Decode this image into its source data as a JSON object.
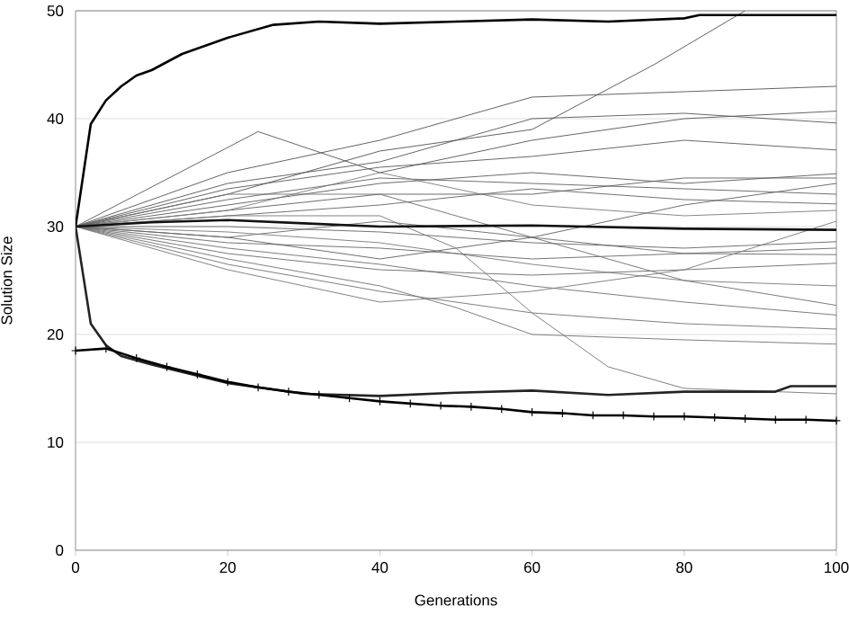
{
  "chart_data": {
    "type": "line",
    "xlabel": "Generations",
    "ylabel": "Solution Size",
    "xlim": [
      0,
      100
    ],
    "ylim": [
      0,
      50
    ],
    "xticks": [
      0,
      20,
      40,
      60,
      80,
      100
    ],
    "yticks": [
      0,
      10,
      20,
      30,
      40,
      50
    ],
    "grid": "y",
    "marker": "none",
    "line_style": "solid",
    "series": [
      {
        "color": "#505050",
        "x": [
          0,
          20,
          40,
          60,
          76,
          88
        ],
        "values": [
          30,
          33,
          37,
          39,
          45,
          50
        ]
      },
      {
        "color": "#525252",
        "x": [
          0,
          20,
          40,
          60,
          80,
          100
        ],
        "values": [
          30,
          35,
          38,
          42,
          42.5,
          43
        ]
      },
      {
        "color": "#545454",
        "x": [
          0,
          24,
          40,
          60,
          80,
          100
        ],
        "values": [
          30,
          38.8,
          35,
          38,
          40,
          40.7
        ]
      },
      {
        "color": "#565656",
        "x": [
          0,
          20,
          40,
          60,
          80,
          100
        ],
        "values": [
          30,
          34,
          36,
          40,
          40.5,
          39.6
        ]
      },
      {
        "color": "#585858",
        "x": [
          0,
          20,
          40,
          60,
          80,
          100
        ],
        "values": [
          30,
          33.5,
          35.5,
          36.5,
          38,
          37.1
        ]
      },
      {
        "color": "#5a5a5a",
        "x": [
          0,
          20,
          40,
          60,
          80,
          100
        ],
        "values": [
          30,
          32,
          34,
          35,
          34,
          34.9
        ]
      },
      {
        "color": "#5c5c5c",
        "x": [
          0,
          20,
          40,
          60,
          80,
          100
        ],
        "values": [
          30,
          31.5,
          33,
          33,
          34.5,
          34.5
        ]
      },
      {
        "color": "#5e5e5e",
        "x": [
          0,
          20,
          40,
          60,
          80,
          100
        ],
        "values": [
          30,
          29,
          27,
          29,
          32,
          34
        ]
      },
      {
        "color": "#606060",
        "x": [
          0,
          20,
          40,
          60,
          80,
          100
        ],
        "values": [
          30,
          32.5,
          34.5,
          34,
          33.5,
          33
        ]
      },
      {
        "color": "#626262",
        "x": [
          0,
          20,
          40,
          60,
          80,
          100
        ],
        "values": [
          30,
          31,
          32,
          33.5,
          32.5,
          32.1
        ]
      },
      {
        "color": "#646464",
        "x": [
          0,
          20,
          40,
          60,
          80,
          100
        ],
        "values": [
          30,
          30,
          29.5,
          28.5,
          28,
          28.6
        ]
      },
      {
        "color": "#666666",
        "x": [
          0,
          20,
          40,
          60,
          80,
          100
        ],
        "values": [
          30,
          28.5,
          28,
          27,
          27.5,
          28
        ]
      },
      {
        "color": "#686868",
        "x": [
          0,
          20,
          40,
          60,
          80,
          100
        ],
        "values": [
          30,
          29,
          30.5,
          29,
          27.5,
          27.4
        ]
      },
      {
        "color": "#6a6a6a",
        "x": [
          0,
          20,
          40,
          60,
          80,
          100
        ],
        "values": [
          30,
          27.5,
          26,
          25.5,
          26,
          26.6
        ]
      },
      {
        "color": "#6c6c6c",
        "x": [
          0,
          20,
          40,
          60,
          80,
          100
        ],
        "values": [
          30,
          33,
          33,
          29,
          25,
          22.7
        ]
      },
      {
        "color": "#6e6e6e",
        "x": [
          0,
          20,
          40,
          60,
          80,
          100
        ],
        "values": [
          30,
          28,
          26.5,
          24.5,
          23,
          21.8
        ]
      },
      {
        "color": "#707070",
        "x": [
          0,
          20,
          40,
          60,
          80,
          100
        ],
        "values": [
          30,
          26.5,
          24,
          22,
          21,
          20.5
        ]
      },
      {
        "color": "#727272",
        "x": [
          0,
          20,
          40,
          50,
          60,
          80,
          100
        ],
        "values": [
          30,
          27,
          24.5,
          22.5,
          20,
          19.5,
          19.1
        ]
      },
      {
        "color": "#747474",
        "x": [
          0,
          20,
          40,
          50,
          60,
          70,
          80,
          100
        ],
        "values": [
          30,
          31,
          31,
          28,
          22,
          17,
          15,
          14.5
        ]
      },
      {
        "color": "#767676",
        "x": [
          0,
          20,
          40,
          60,
          80,
          100
        ],
        "values": [
          30,
          26,
          23,
          24,
          26,
          30.5
        ]
      },
      {
        "color": "#787878",
        "x": [
          0,
          20,
          40,
          60,
          80,
          100
        ],
        "values": [
          30,
          29.5,
          28.5,
          26.5,
          25,
          24.5
        ]
      },
      {
        "color": "#7a7a7a",
        "x": [
          0,
          20,
          40,
          60,
          80,
          100
        ],
        "values": [
          30,
          31.5,
          35,
          32,
          31,
          31.5
        ]
      },
      {
        "color": "#000000",
        "x": [
          0,
          2,
          4,
          6,
          8,
          10,
          14,
          20,
          26,
          32,
          40,
          50,
          60,
          70,
          80,
          82,
          100
        ],
        "values": [
          30,
          39.5,
          41.7,
          43,
          44,
          44.5,
          46,
          47.5,
          48.7,
          49,
          48.8,
          49,
          49.2,
          49,
          49.3,
          49.6,
          49.6
        ]
      },
      {
        "color": "#121212",
        "x": [
          0,
          10,
          20,
          30,
          40,
          60,
          80,
          100
        ],
        "values": [
          30,
          30.4,
          30.6,
          30.3,
          30,
          30.1,
          29.8,
          29.7
        ]
      },
      {
        "color": "#242424",
        "x": [
          0,
          2,
          4,
          6,
          10,
          20,
          30,
          40,
          50,
          60,
          70,
          80,
          92,
          94,
          100
        ],
        "values": [
          30,
          21,
          19,
          18,
          17.2,
          15.5,
          14.5,
          14.3,
          14.6,
          14.8,
          14.4,
          14.7,
          14.7,
          15.2,
          15.2
        ]
      },
      {
        "color": "#000000",
        "marker": "cross",
        "x": [
          0,
          4,
          8,
          12,
          16,
          20,
          24,
          28,
          32,
          36,
          40,
          44,
          48,
          52,
          56,
          60,
          64,
          68,
          72,
          76,
          80,
          84,
          88,
          92,
          96,
          100
        ],
        "values": [
          18.5,
          18.7,
          17.8,
          17,
          16.3,
          15.6,
          15.1,
          14.7,
          14.4,
          14.1,
          13.8,
          13.6,
          13.4,
          13.3,
          13.1,
          12.8,
          12.7,
          12.5,
          12.5,
          12.4,
          12.4,
          12.3,
          12.2,
          12.1,
          12.1,
          12.0
        ]
      }
    ]
  }
}
